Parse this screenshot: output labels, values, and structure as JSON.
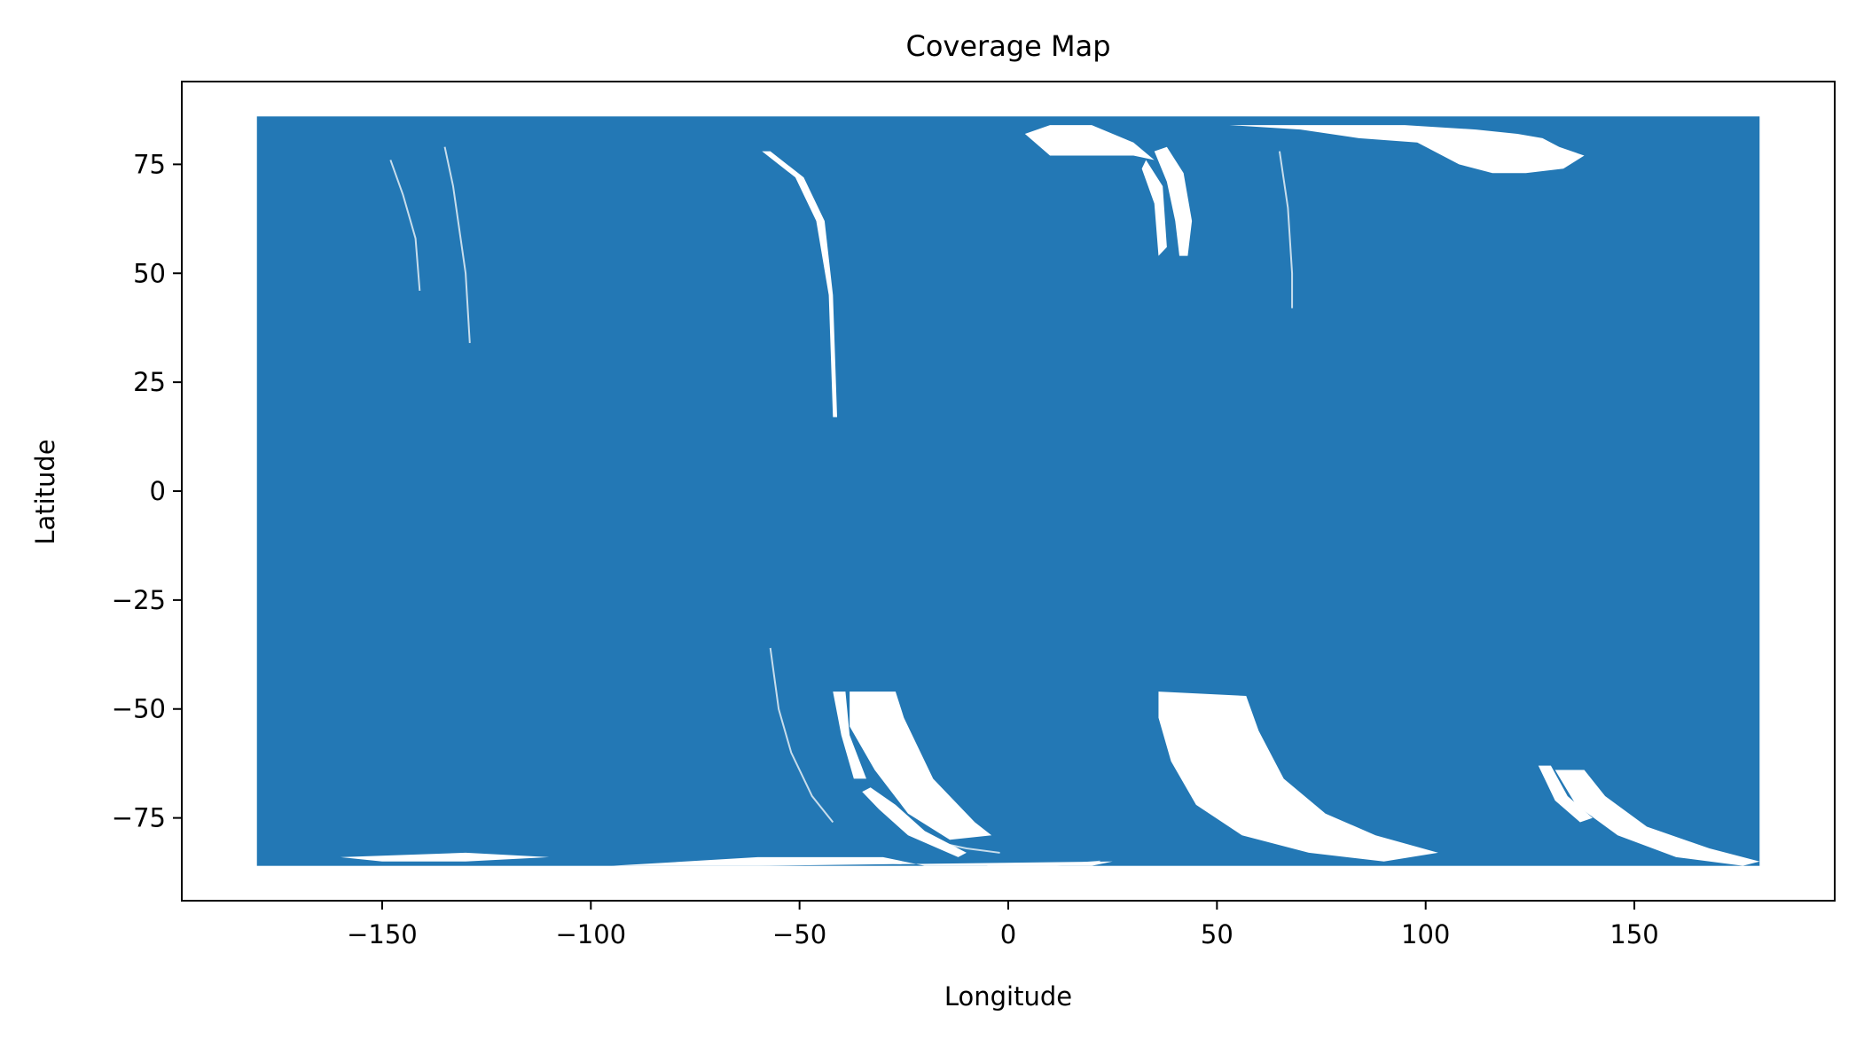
{
  "chart_data": {
    "type": "scatter",
    "title": "Coverage Map",
    "xlabel": "Longitude",
    "ylabel": "Latitude",
    "xlim": [
      -198,
      198
    ],
    "ylim": [
      -94,
      94
    ],
    "xticks": [
      -150,
      -100,
      -50,
      0,
      50,
      100,
      150
    ],
    "yticks": [
      -75,
      -50,
      -25,
      0,
      25,
      50,
      75
    ],
    "grid": false,
    "legend": "none",
    "series": [
      {
        "color": "#2378b5",
        "description_points": "dense coverage points over longitude -180 to 180 and latitude about -86 to 86",
        "filled_region": {
          "x": [
            -180,
            180
          ],
          "y": [
            -86,
            86
          ]
        },
        "gaps": [
          {
            "polygon": [
              [
                -57,
                78
              ],
              [
                -49,
                72
              ],
              [
                -44,
                62
              ],
              [
                -42,
                45
              ],
              [
                -41,
                17
              ],
              [
                -42,
                17
              ],
              [
                -43,
                45
              ],
              [
                -46,
                62
              ],
              [
                -51,
                72
              ],
              [
                -59,
                78
              ]
            ]
          },
          {
            "polygon": [
              [
                -38,
                -46
              ],
              [
                -27,
                -46
              ],
              [
                -25,
                -52
              ],
              [
                -18,
                -66
              ],
              [
                -8,
                -76
              ],
              [
                -4,
                -79
              ],
              [
                -14,
                -80
              ],
              [
                -24,
                -74
              ],
              [
                -32,
                -64
              ],
              [
                -38,
                -54
              ]
            ]
          },
          {
            "polygon": [
              [
                -42,
                -46
              ],
              [
                -39,
                -46
              ],
              [
                -38,
                -56
              ],
              [
                -34,
                -66
              ],
              [
                -37,
                -66
              ],
              [
                -40,
                -56
              ]
            ]
          },
          {
            "polygon": [
              [
                -33,
                -68
              ],
              [
                -27,
                -72
              ],
              [
                -20,
                -78
              ],
              [
                -10,
                -83
              ],
              [
                -12,
                -84
              ],
              [
                -24,
                -79
              ],
              [
                -31,
                -73
              ],
              [
                -35,
                -69
              ]
            ]
          },
          {
            "polygon": [
              [
                36,
                -46
              ],
              [
                57,
                -47
              ],
              [
                60,
                -55
              ],
              [
                66,
                -66
              ],
              [
                76,
                -74
              ],
              [
                88,
                -79
              ],
              [
                103,
                -83
              ],
              [
                90,
                -85
              ],
              [
                72,
                -83
              ],
              [
                56,
                -79
              ],
              [
                45,
                -72
              ],
              [
                39,
                -62
              ],
              [
                36,
                -52
              ]
            ]
          },
          {
            "polygon": [
              [
                131,
                -64
              ],
              [
                138,
                -64
              ],
              [
                143,
                -70
              ],
              [
                153,
                -77
              ],
              [
                168,
                -82
              ],
              [
                180,
                -85
              ],
              [
                176,
                -86
              ],
              [
                160,
                -84
              ],
              [
                146,
                -79
              ],
              [
                136,
                -72
              ]
            ]
          },
          {
            "polygon": [
              [
                127,
                -63
              ],
              [
                130,
                -63
              ],
              [
                134,
                -70
              ],
              [
                140,
                -75
              ],
              [
                137,
                -76
              ],
              [
                131,
                -71
              ]
            ]
          },
          {
            "polygon": [
              [
                10,
                77
              ],
              [
                22,
                77
              ],
              [
                30,
                77
              ],
              [
                35,
                76
              ],
              [
                30,
                80
              ],
              [
                20,
                84
              ],
              [
                10,
                84
              ],
              [
                4,
                82
              ]
            ]
          },
          {
            "polygon": [
              [
                38,
                79
              ],
              [
                42,
                73
              ],
              [
                44,
                62
              ],
              [
                43,
                54
              ],
              [
                41,
                54
              ],
              [
                40,
                62
              ],
              [
                38,
                71
              ],
              [
                35,
                78
              ]
            ]
          },
          {
            "polygon": [
              [
                33,
                76
              ],
              [
                37,
                70
              ],
              [
                38,
                56
              ],
              [
                36,
                54
              ],
              [
                35,
                66
              ],
              [
                32,
                74
              ]
            ]
          },
          {
            "polygon": [
              [
                53,
                84
              ],
              [
                62,
                84
              ],
              [
                80,
                84
              ],
              [
                95,
                84
              ],
              [
                112,
                83
              ],
              [
                122,
                82
              ],
              [
                128,
                81
              ],
              [
                132,
                79
              ],
              [
                138,
                77
              ],
              [
                133,
                74
              ],
              [
                124,
                73
              ],
              [
                116,
                73
              ],
              [
                108,
                75
              ],
              [
                98,
                80
              ],
              [
                84,
                81
              ],
              [
                70,
                83
              ]
            ]
          },
          {
            "polygon": [
              [
                -180,
                -86
              ],
              [
                -125,
                -86
              ],
              [
                -95,
                -86
              ],
              [
                -60,
                -84
              ],
              [
                -30,
                -84
              ],
              [
                -20,
                -86
              ],
              [
                20,
                -86
              ],
              [
                25,
                -85
              ],
              [
                -60,
                -86
              ],
              [
                -160,
                -86
              ]
            ]
          },
          {
            "polygon": [
              [
                -160,
                -84
              ],
              [
                -130,
                -83
              ],
              [
                -110,
                -84
              ],
              [
                -130,
                -85
              ],
              [
                -150,
                -85
              ]
            ]
          }
        ],
        "thin_gaps": [
          {
            "polyline": [
              [
                -148,
                76
              ],
              [
                -145,
                68
              ],
              [
                -142,
                58
              ],
              [
                -141,
                46
              ]
            ]
          },
          {
            "polyline": [
              [
                -135,
                79
              ],
              [
                -133,
                70
              ],
              [
                -130,
                50
              ],
              [
                -129,
                34
              ]
            ]
          },
          {
            "polyline": [
              [
                -57,
                -36
              ],
              [
                -55,
                -50
              ],
              [
                -52,
                -60
              ],
              [
                -47,
                -70
              ],
              [
                -42,
                -76
              ]
            ]
          },
          {
            "polyline": [
              [
                -20,
                -80
              ],
              [
                -10,
                -82
              ],
              [
                -2,
                -83
              ]
            ]
          },
          {
            "polyline": [
              [
                -5,
                -86
              ],
              [
                10,
                -86
              ],
              [
                22,
                -85
              ]
            ]
          },
          {
            "polyline": [
              [
                65,
                78
              ],
              [
                67,
                65
              ],
              [
                68,
                50
              ],
              [
                68,
                42
              ]
            ]
          }
        ]
      }
    ]
  }
}
